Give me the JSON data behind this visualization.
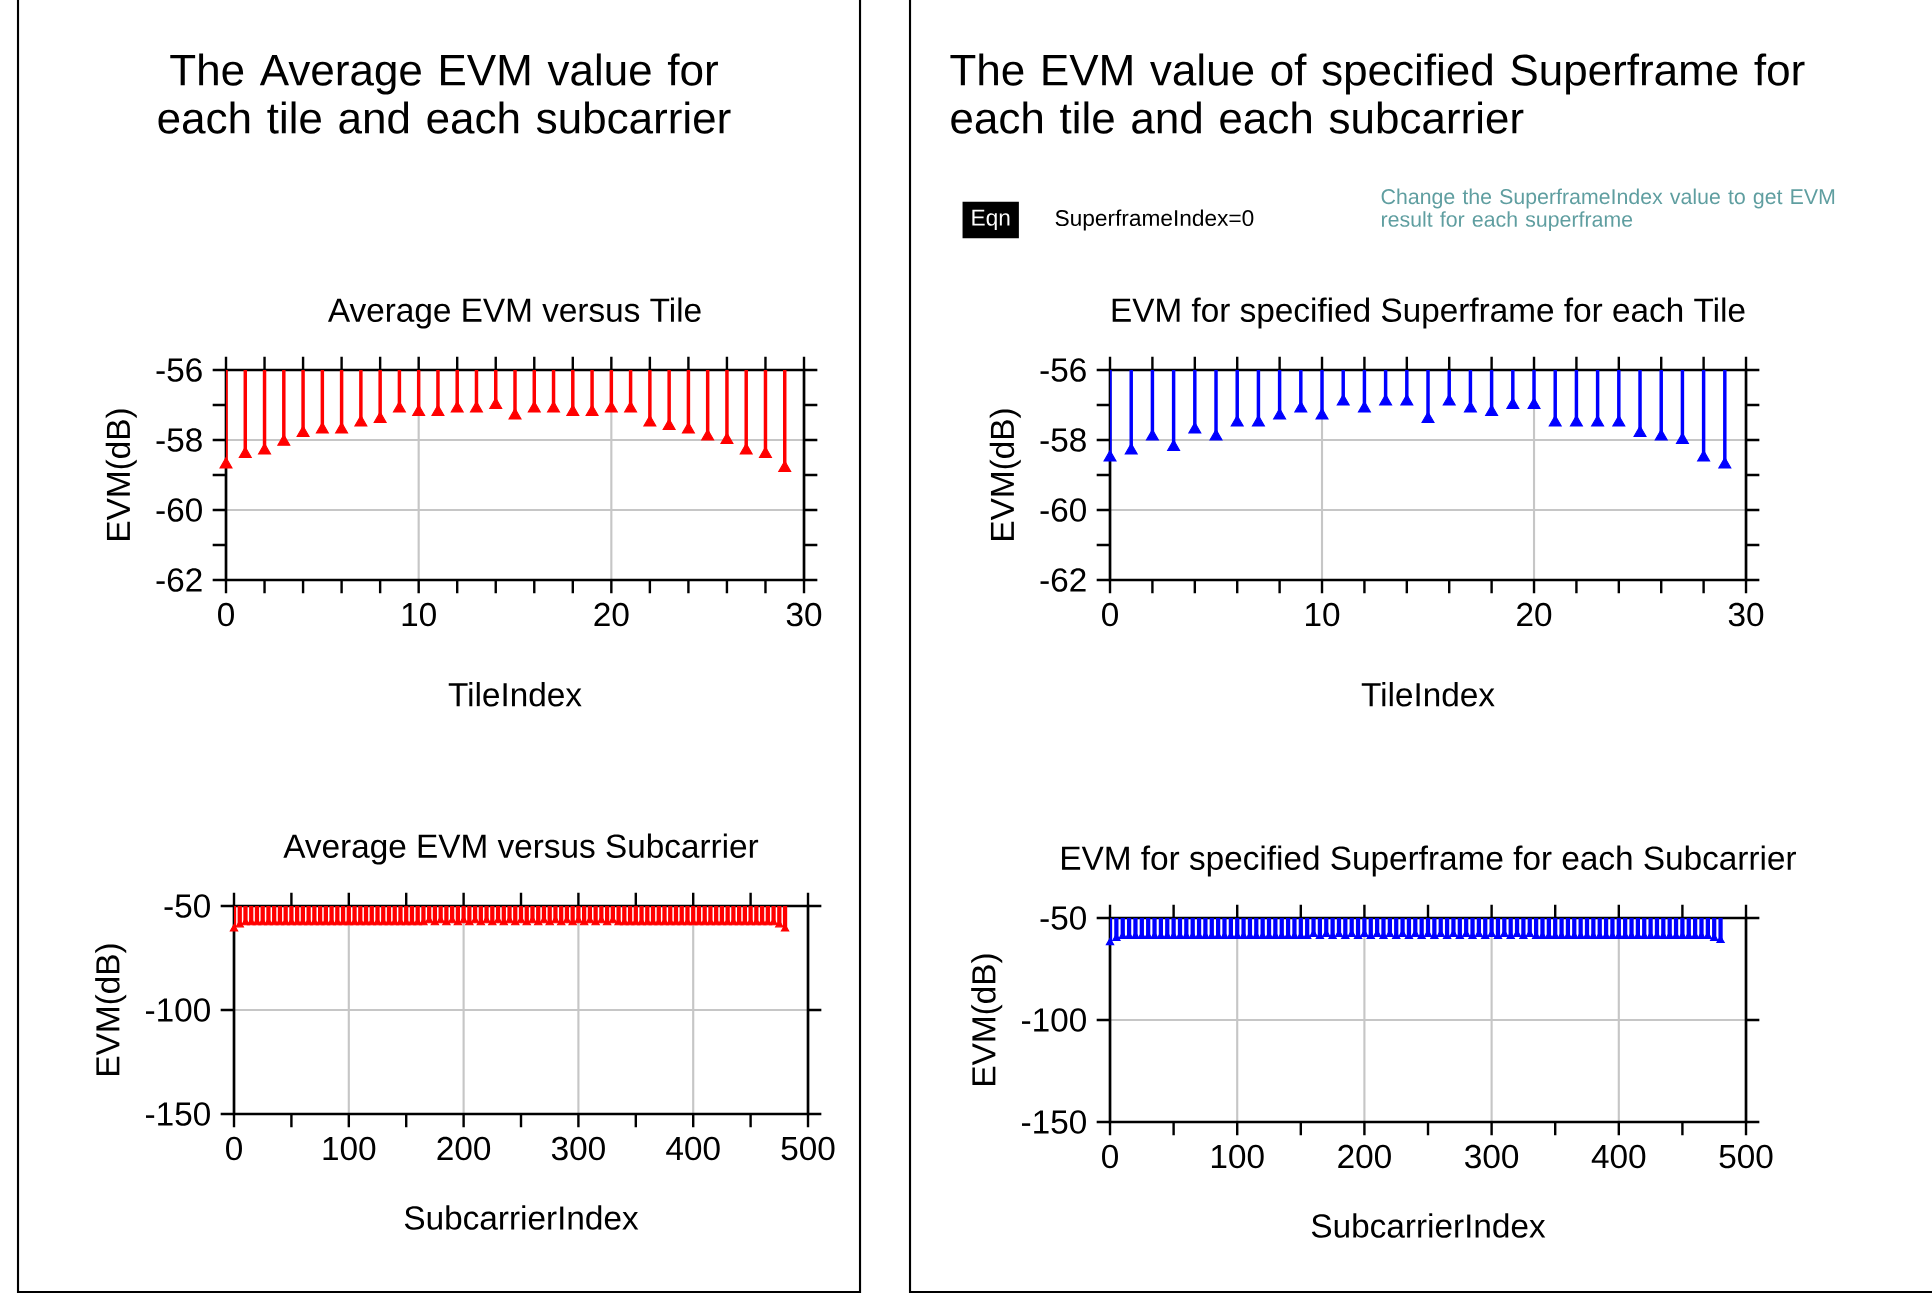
{
  "chart_data": [
    {
      "type": "lollipop",
      "title": "Average EVM versus Tile",
      "xlabel": "TileIndex",
      "ylabel": "EVM(dB)",
      "color": "#ff0000",
      "marker": "triangle",
      "grid": true,
      "annotations": [
        "The Average EVM value for each tile and each subcarrier"
      ],
      "x": [
        0,
        1,
        2,
        3,
        4,
        5,
        6,
        7,
        8,
        9,
        10,
        11,
        12,
        13,
        14,
        15,
        16,
        17,
        18,
        19,
        20,
        21,
        22,
        23,
        24,
        25,
        26,
        27,
        28,
        29
      ],
      "values": [
        -58.7,
        -58.4,
        -58.3,
        -58.05,
        -57.8,
        -57.7,
        -57.7,
        -57.5,
        -57.4,
        -57.1,
        -57.2,
        -57.2,
        -57.1,
        -57.1,
        -57.0,
        -57.3,
        -57.1,
        -57.1,
        -57.2,
        -57.2,
        -57.1,
        -57.1,
        -57.5,
        -57.6,
        -57.7,
        -57.9,
        -58.0,
        -58.3,
        -58.4,
        -58.8
      ],
      "xlim": [
        0,
        30
      ],
      "ylim": [
        -62,
        -56
      ],
      "xticks": [
        0,
        {
          "value": 2,
          "label": null
        },
        {
          "value": 4,
          "label": null
        },
        {
          "value": 6,
          "label": null
        },
        {
          "value": 8,
          "label": null
        },
        10,
        {
          "value": 12,
          "label": null
        },
        {
          "value": 14,
          "label": null
        },
        {
          "value": 16,
          "label": null
        },
        {
          "value": 18,
          "label": null
        },
        20,
        {
          "value": 22,
          "label": null
        },
        {
          "value": 24,
          "label": null
        },
        {
          "value": 26,
          "label": null
        },
        {
          "value": 28,
          "label": null
        },
        30
      ],
      "yticks": [
        -62,
        {
          "value": -61,
          "label": null
        },
        -60,
        {
          "value": -59,
          "label": null
        },
        -58,
        {
          "value": -57,
          "label": null
        },
        -56
      ]
    },
    {
      "type": "lollipop",
      "title": "EVM for specified Superframe for each Tile",
      "xlabel": "TileIndex",
      "ylabel": "EVM(dB)",
      "color": "#0000ff",
      "marker": "triangle",
      "grid": true,
      "annotations": [
        "The EVM value of specified Superframe for each tile and each subcarrier",
        "Eqn",
        "SuperframeIndex=0",
        "Change the SuperframeIndex value to get EVM result for each superframe"
      ],
      "x": [
        0,
        1,
        2,
        3,
        4,
        5,
        6,
        7,
        8,
        9,
        10,
        11,
        12,
        13,
        14,
        15,
        16,
        17,
        18,
        19,
        20,
        21,
        22,
        23,
        24,
        25,
        26,
        27,
        28,
        29
      ],
      "values": [
        -58.5,
        -58.3,
        -57.9,
        -58.2,
        -57.7,
        -57.9,
        -57.5,
        -57.5,
        -57.3,
        -57.1,
        -57.3,
        -56.9,
        -57.1,
        -56.9,
        -56.9,
        -57.4,
        -56.9,
        -57.1,
        -57.2,
        -57.0,
        -57.0,
        -57.5,
        -57.5,
        -57.5,
        -57.5,
        -57.8,
        -57.9,
        -58.0,
        -58.5,
        -58.7
      ],
      "xlim": [
        0,
        30
      ],
      "ylim": [
        -62,
        -56
      ],
      "xticks": [
        0,
        {
          "value": 2,
          "label": null
        },
        {
          "value": 4,
          "label": null
        },
        {
          "value": 6,
          "label": null
        },
        {
          "value": 8,
          "label": null
        },
        10,
        {
          "value": 12,
          "label": null
        },
        {
          "value": 14,
          "label": null
        },
        {
          "value": 16,
          "label": null
        },
        {
          "value": 18,
          "label": null
        },
        20,
        {
          "value": 22,
          "label": null
        },
        {
          "value": 24,
          "label": null
        },
        {
          "value": 26,
          "label": null
        },
        {
          "value": 28,
          "label": null
        },
        30
      ],
      "yticks": [
        -62,
        {
          "value": -61,
          "label": null
        },
        -60,
        {
          "value": -59,
          "label": null
        },
        -58,
        {
          "value": -57,
          "label": null
        },
        -56
      ]
    },
    {
      "type": "lollipop",
      "title": "Average EVM versus Subcarrier",
      "xlabel": "SubcarrierIndex",
      "ylabel": "EVM(dB)",
      "color": "#ff0000",
      "marker": "triangle",
      "grid": true,
      "x": [
        0,
        5,
        10,
        15,
        20,
        25,
        30,
        35,
        40,
        45,
        50,
        55,
        60,
        65,
        70,
        75,
        80,
        85,
        90,
        95,
        100,
        105,
        110,
        115,
        120,
        125,
        130,
        135,
        140,
        145,
        150,
        155,
        160,
        165,
        170,
        175,
        180,
        185,
        190,
        195,
        200,
        205,
        210,
        215,
        220,
        225,
        230,
        235,
        240,
        245,
        250,
        255,
        260,
        265,
        270,
        275,
        280,
        285,
        290,
        295,
        300,
        305,
        310,
        315,
        320,
        325,
        330,
        335,
        340,
        345,
        350,
        355,
        360,
        365,
        370,
        375,
        380,
        385,
        390,
        395,
        400,
        405,
        410,
        415,
        420,
        425,
        430,
        435,
        440,
        445,
        450,
        455,
        460,
        465,
        470,
        475,
        480
      ],
      "values": [
        -61,
        -59,
        -58,
        -58,
        -58,
        -58,
        -58,
        -58,
        -58,
        -58,
        -58,
        -58,
        -58,
        -58,
        -58,
        -58,
        -58,
        -58,
        -58,
        -58,
        -58,
        -58,
        -58,
        -58,
        -58,
        -58,
        -58,
        -58,
        -58,
        -58,
        -58,
        -58,
        -58,
        -58,
        -57,
        -58,
        -57,
        -58,
        -57,
        -58,
        -57,
        -58,
        -57,
        -58,
        -57,
        -58,
        -57,
        -58,
        -57,
        -58,
        -57,
        -58,
        -57,
        -58,
        -57,
        -58,
        -57,
        -58,
        -57,
        -58,
        -57,
        -58,
        -57,
        -58,
        -57,
        -58,
        -57,
        -58,
        -58,
        -58,
        -58,
        -58,
        -58,
        -58,
        -58,
        -58,
        -58,
        -58,
        -58,
        -58,
        -58,
        -58,
        -58,
        -58,
        -58,
        -58,
        -58,
        -58,
        -58,
        -58,
        -58,
        -58,
        -58,
        -58,
        -58,
        -59,
        -61
      ],
      "xlim": [
        0,
        500
      ],
      "ylim": [
        -150,
        -50
      ],
      "xticks": [
        0,
        {
          "value": 50,
          "label": null
        },
        100,
        {
          "value": 150,
          "label": null
        },
        200,
        {
          "value": 250,
          "label": null
        },
        300,
        {
          "value": 350,
          "label": null
        },
        400,
        {
          "value": 450,
          "label": null
        },
        500
      ],
      "yticks": [
        -150,
        -100,
        -50
      ]
    },
    {
      "type": "lollipop",
      "title": "EVM for specified Superframe for each Subcarrier",
      "xlabel": "SubcarrierIndex",
      "ylabel": "EVM(dB)",
      "color": "#0000ff",
      "marker": "triangle",
      "grid": true,
      "x": [
        0,
        5,
        10,
        15,
        20,
        25,
        30,
        35,
        40,
        45,
        50,
        55,
        60,
        65,
        70,
        75,
        80,
        85,
        90,
        95,
        100,
        105,
        110,
        115,
        120,
        125,
        130,
        135,
        140,
        145,
        150,
        155,
        160,
        165,
        170,
        175,
        180,
        185,
        190,
        195,
        200,
        205,
        210,
        215,
        220,
        225,
        230,
        235,
        240,
        245,
        250,
        255,
        260,
        265,
        270,
        275,
        280,
        285,
        290,
        295,
        300,
        305,
        310,
        315,
        320,
        325,
        330,
        335,
        340,
        345,
        350,
        355,
        360,
        365,
        370,
        375,
        380,
        385,
        390,
        395,
        400,
        405,
        410,
        415,
        420,
        425,
        430,
        435,
        440,
        445,
        450,
        455,
        460,
        465,
        470,
        475,
        480
      ],
      "values": [
        -62,
        -60,
        -59,
        -59,
        -59,
        -59,
        -59,
        -59,
        -59,
        -59,
        -59,
        -59,
        -59,
        -59,
        -59,
        -59,
        -59,
        -59,
        -59,
        -59,
        -59,
        -59,
        -59,
        -59,
        -59,
        -59,
        -59,
        -59,
        -59,
        -59,
        -59,
        -59,
        -58,
        -59,
        -58,
        -59,
        -58,
        -59,
        -58,
        -59,
        -58,
        -59,
        -58,
        -59,
        -58,
        -59,
        -58,
        -59,
        -58,
        -59,
        -58,
        -59,
        -58,
        -59,
        -58,
        -59,
        -58,
        -59,
        -58,
        -59,
        -58,
        -59,
        -58,
        -59,
        -58,
        -59,
        -58,
        -59,
        -59,
        -59,
        -59,
        -59,
        -59,
        -59,
        -59,
        -59,
        -59,
        -59,
        -59,
        -59,
        -59,
        -59,
        -59,
        -59,
        -59,
        -59,
        -59,
        -59,
        -59,
        -59,
        -59,
        -59,
        -59,
        -59,
        -59,
        -60,
        -61
      ],
      "xlim": [
        0,
        500
      ],
      "ylim": [
        -150,
        -50
      ],
      "xticks": [
        0,
        {
          "value": 50,
          "label": null
        },
        100,
        {
          "value": 150,
          "label": null
        },
        200,
        {
          "value": 250,
          "label": null
        },
        300,
        {
          "value": 350,
          "label": null
        },
        400,
        {
          "value": 450,
          "label": null
        },
        500
      ],
      "yticks": [
        -150,
        -100,
        -50
      ]
    }
  ]
}
